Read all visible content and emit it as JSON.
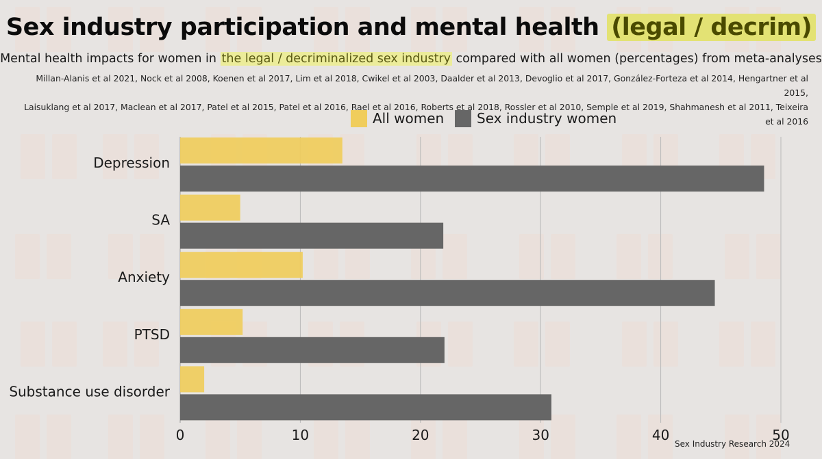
{
  "title": {
    "main": "Sex industry participation and mental health",
    "highlight": "(legal / decrim)"
  },
  "subtitle": {
    "before": "Mental health impacts for women in ",
    "highlight": "the legal / decriminalized sex industry",
    "after": " compared with all women (percentages) from meta-analyses"
  },
  "references": {
    "line1": "Millan-Alanis et al 2021, Nock et al 2008, Koenen et al 2017, Lim et al 2018, Cwikel et al 2003, Daalder et al 2013, Devoglio et al 2017, González-Forteza et al 2014, Hengartner et al 2015,",
    "line2": "Laisuklang et al 2017, Maclean et al 2017, Patel et al 2015, Patel et al 2016, Rael et al 2016, Roberts et al 2018, Rossler et al 2010, Semple et al 2019, Shahmanesh et al 2011, Teixeira et al 2016"
  },
  "credit": "Sex Industry Research 2024",
  "colors": {
    "all_women": "#f0cd5c",
    "sex_industry": "#666666",
    "grid": "#b8b8b8"
  },
  "chart_data": {
    "type": "bar",
    "orientation": "horizontal",
    "categories": [
      "Depression",
      "SA",
      "Anxiety",
      "PTSD",
      "Substance use disorder"
    ],
    "series": [
      {
        "name": "All women",
        "values": [
          13.5,
          5.0,
          10.2,
          5.2,
          2.0
        ]
      },
      {
        "name": "Sex industry women",
        "values": [
          48.6,
          21.9,
          44.5,
          22.0,
          30.9
        ]
      }
    ],
    "xlim": [
      0,
      50
    ],
    "xticks": [
      0,
      10,
      20,
      30,
      40,
      50
    ],
    "grid": true,
    "legend_position": "top"
  }
}
